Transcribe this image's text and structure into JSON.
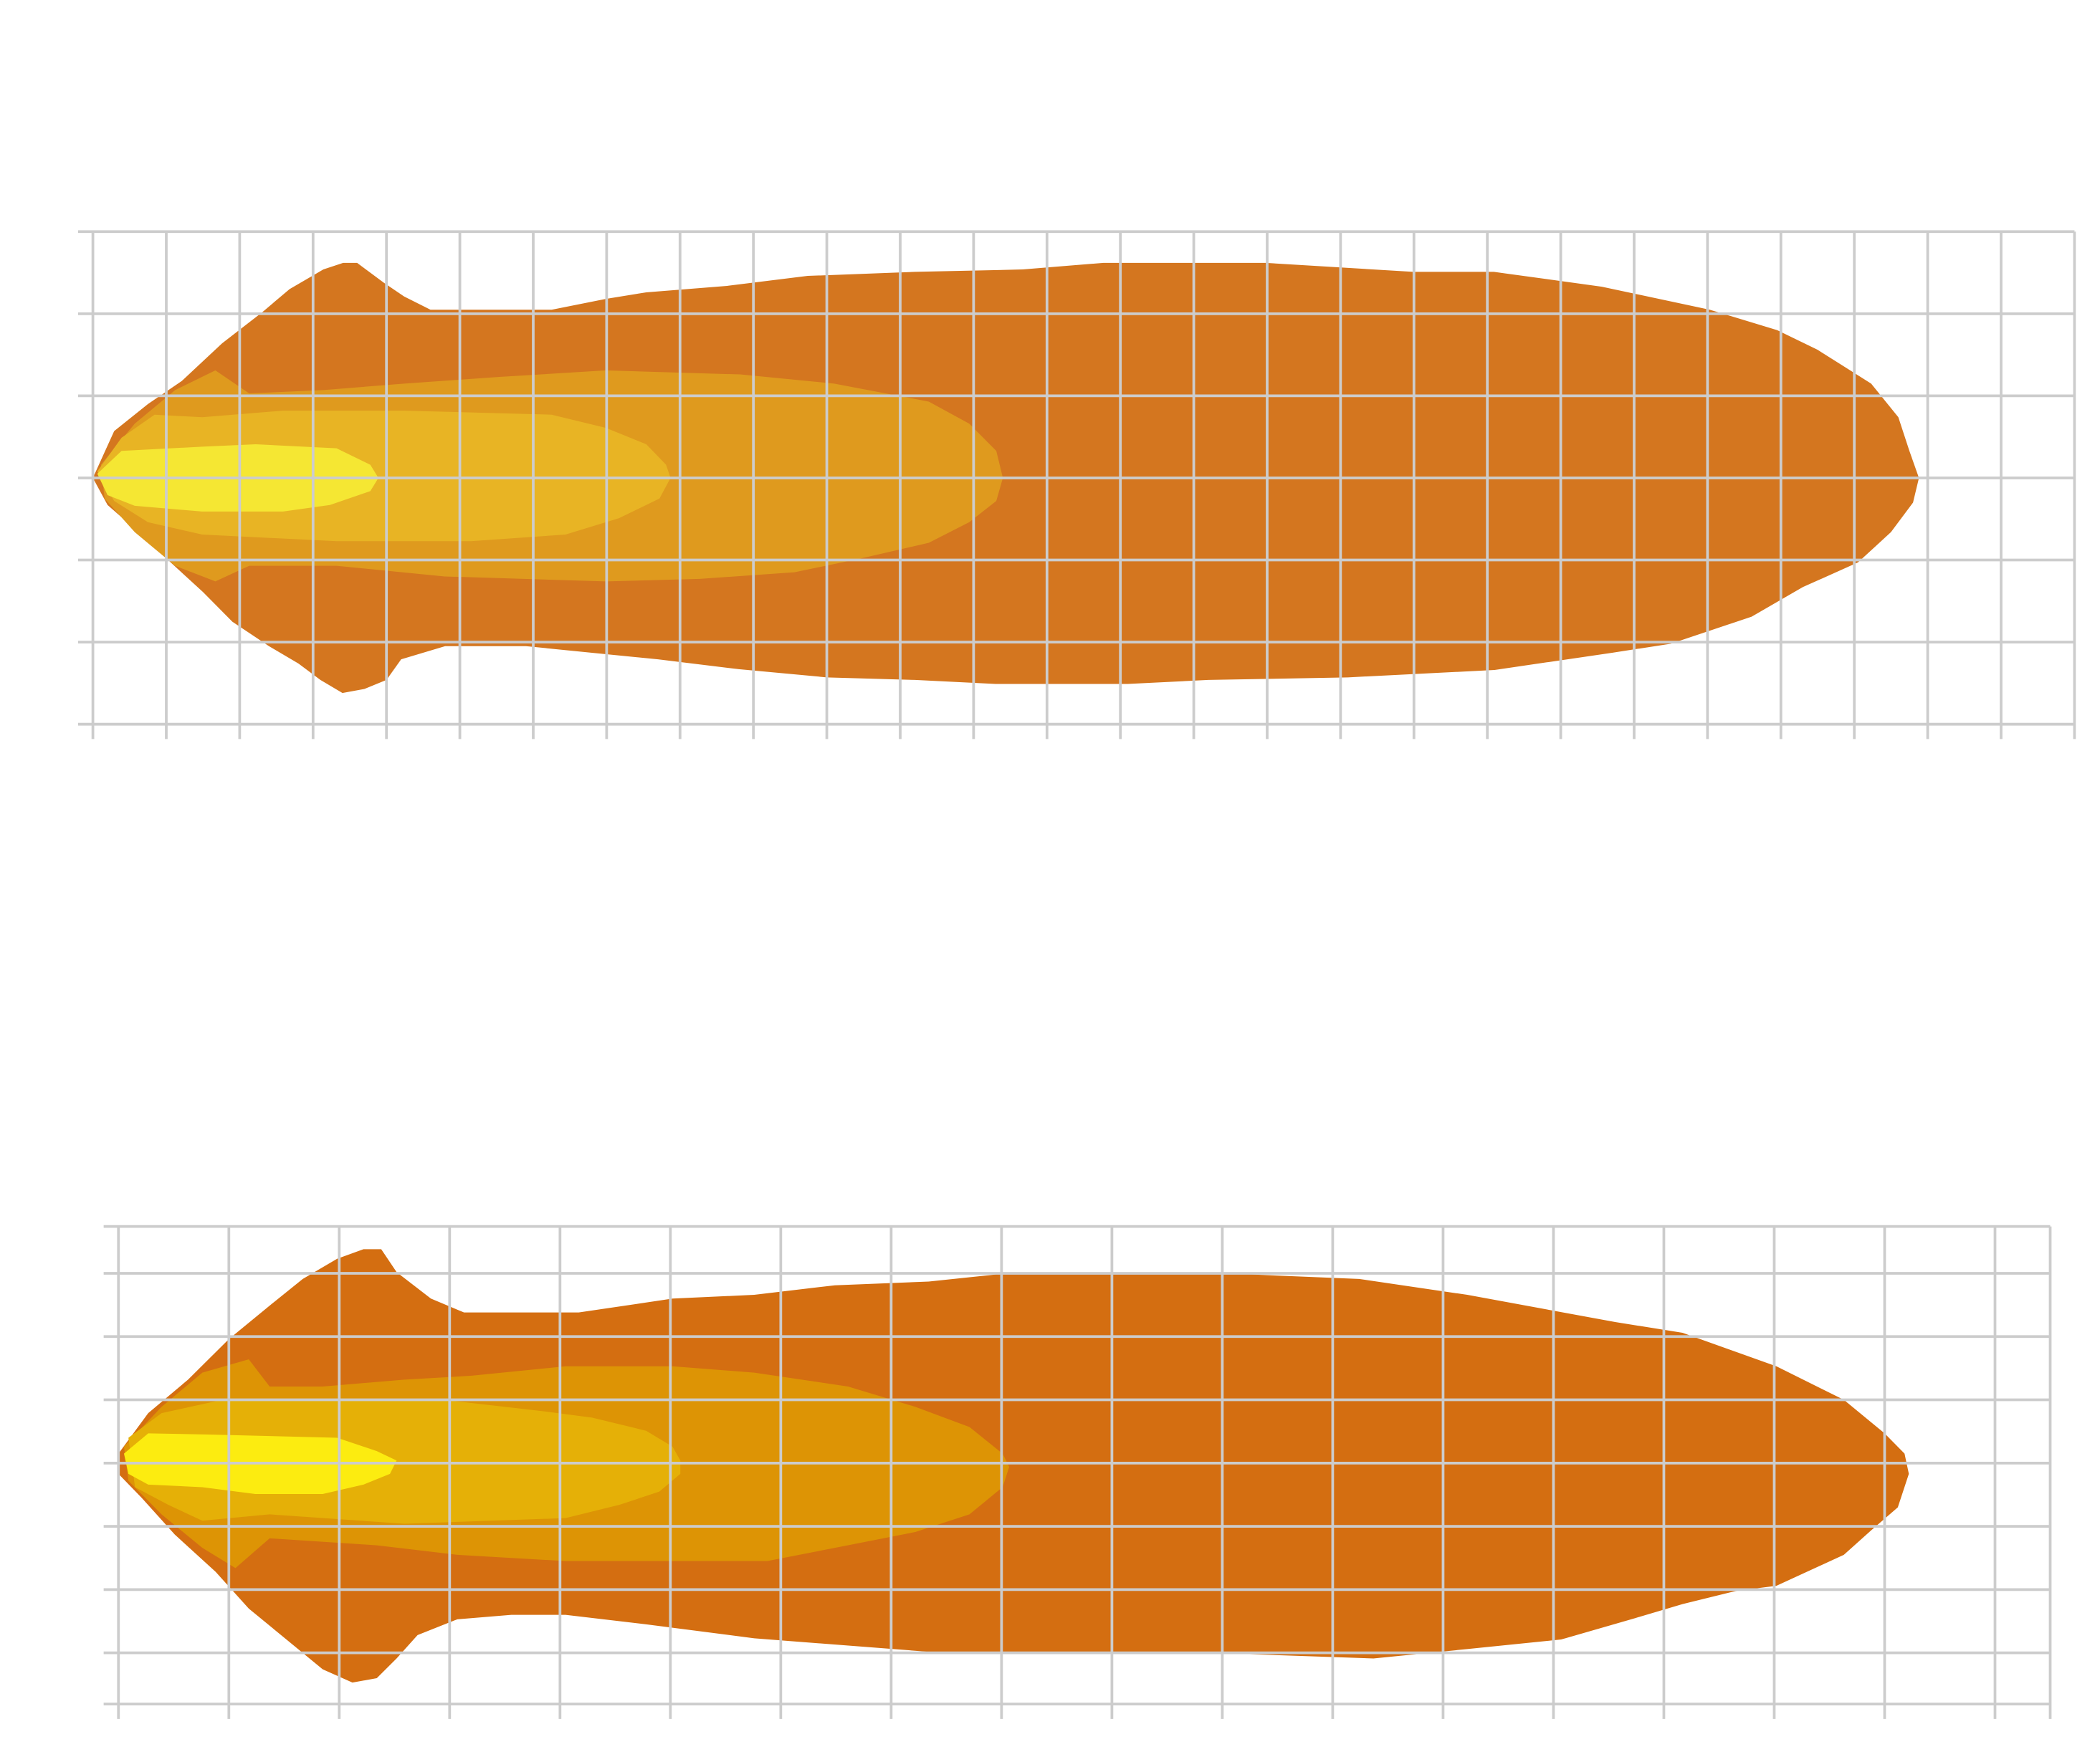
{
  "chart_data": [
    {
      "type": "area",
      "title": "",
      "xlabel": "",
      "ylabel": "",
      "grid": true,
      "grid_color": "#CCCCCC",
      "xlim": [
        0,
        27
      ],
      "ylim": [
        -3,
        3
      ],
      "x_grid": [
        0,
        1,
        2,
        3,
        4,
        5,
        6,
        7,
        8,
        9,
        10,
        11,
        12,
        13,
        14,
        15,
        16,
        17,
        18,
        19,
        20,
        21,
        22,
        23,
        24,
        25,
        26,
        27
      ],
      "y_grid": [
        -3,
        -2,
        -1,
        0,
        1,
        2,
        3
      ],
      "contours": [
        {
          "level": 1,
          "color": "#D4761F",
          "top": [
            [
              0,
              0
            ],
            [
              0.29,
              0.57
            ],
            [
              0.75,
              0.9
            ],
            [
              1.21,
              1.18
            ],
            [
              1.76,
              1.64
            ],
            [
              2.31,
              2.02
            ],
            [
              2.68,
              2.3
            ],
            [
              3.14,
              2.54
            ],
            [
              3.41,
              2.62
            ],
            [
              3.6,
              2.62
            ],
            [
              3.96,
              2.38
            ],
            [
              4.24,
              2.21
            ],
            [
              4.6,
              2.05
            ],
            [
              6.25,
              2.05
            ],
            [
              6.99,
              2.18
            ],
            [
              7.54,
              2.26
            ],
            [
              8.64,
              2.34
            ],
            [
              9.74,
              2.46
            ],
            [
              11.2,
              2.51
            ],
            [
              12.67,
              2.54
            ],
            [
              13.77,
              2.62
            ],
            [
              15.98,
              2.62
            ],
            [
              17.99,
              2.51
            ],
            [
              19.09,
              2.51
            ],
            [
              20.56,
              2.33
            ],
            [
              22.03,
              2.05
            ],
            [
              22.95,
              1.8
            ],
            [
              23.5,
              1.56
            ],
            [
              24.23,
              1.15
            ],
            [
              24.6,
              0.74
            ],
            [
              24.75,
              0.33
            ],
            [
              24.88,
              0
            ]
          ],
          "bottom": [
            [
              24.8,
              -0.3
            ],
            [
              24.5,
              -0.66
            ],
            [
              24.05,
              -1.03
            ],
            [
              23.3,
              -1.33
            ],
            [
              22.6,
              -1.69
            ],
            [
              21.5,
              -2.02
            ],
            [
              20.7,
              -2.13
            ],
            [
              19.1,
              -2.34
            ],
            [
              17.1,
              -2.43
            ],
            [
              15.2,
              -2.46
            ],
            [
              14.1,
              -2.51
            ],
            [
              12.3,
              -2.51
            ],
            [
              11.2,
              -2.46
            ],
            [
              10,
              -2.43
            ],
            [
              8.8,
              -2.33
            ],
            [
              7.7,
              -2.21
            ],
            [
              6.8,
              -2.13
            ],
            [
              5.9,
              -2.05
            ],
            [
              4.8,
              -2.05
            ],
            [
              4.2,
              -2.21
            ],
            [
              4,
              -2.46
            ],
            [
              3.7,
              -2.57
            ],
            [
              3.4,
              -2.62
            ],
            [
              3.1,
              -2.46
            ],
            [
              2.8,
              -2.26
            ],
            [
              2.4,
              -2.05
            ],
            [
              1.9,
              -1.75
            ],
            [
              1.5,
              -1.39
            ],
            [
              1,
              -0.98
            ],
            [
              0.57,
              -0.62
            ],
            [
              0.2,
              -0.33
            ]
          ]
        },
        {
          "level": 2,
          "color": "#DF9A1E",
          "top": [
            [
              0.11,
              0.16
            ],
            [
              0.57,
              0.66
            ],
            [
              1.12,
              1.07
            ],
            [
              1.67,
              1.31
            ],
            [
              2.13,
              1.03
            ],
            [
              3.14,
              1.07
            ],
            [
              4.24,
              1.15
            ],
            [
              5.52,
              1.23
            ],
            [
              6.99,
              1.31
            ],
            [
              8.82,
              1.26
            ],
            [
              10.1,
              1.15
            ],
            [
              11.39,
              0.93
            ],
            [
              11.94,
              0.66
            ],
            [
              12.31,
              0.33
            ],
            [
              12.4,
              0
            ]
          ],
          "bottom": [
            [
              12.31,
              -0.28
            ],
            [
              11.94,
              -0.54
            ],
            [
              11.39,
              -0.79
            ],
            [
              10.47,
              -0.98
            ],
            [
              9.56,
              -1.15
            ],
            [
              8.27,
              -1.23
            ],
            [
              6.99,
              -1.26
            ],
            [
              4.79,
              -1.2
            ],
            [
              3.32,
              -1.07
            ],
            [
              2.13,
              -1.07
            ],
            [
              1.67,
              -1.26
            ],
            [
              1.12,
              -1.07
            ],
            [
              0.57,
              -0.66
            ],
            [
              0.16,
              -0.25
            ]
          ]
        },
        {
          "level": 3,
          "color": "#E8B424",
          "top": [
            [
              0.06,
              0.08
            ],
            [
              0.39,
              0.49
            ],
            [
              0.84,
              0.77
            ],
            [
              1.49,
              0.74
            ],
            [
              2.59,
              0.82
            ],
            [
              4.24,
              0.82
            ],
            [
              6.25,
              0.77
            ],
            [
              6.99,
              0.61
            ],
            [
              7.54,
              0.41
            ],
            [
              7.81,
              0.16
            ],
            [
              7.87,
              0
            ]
          ],
          "bottom": [
            [
              7.72,
              -0.25
            ],
            [
              7.17,
              -0.49
            ],
            [
              6.44,
              -0.69
            ],
            [
              5.15,
              -0.77
            ],
            [
              3.32,
              -0.77
            ],
            [
              1.49,
              -0.69
            ],
            [
              0.75,
              -0.54
            ],
            [
              0.29,
              -0.28
            ]
          ]
        },
        {
          "level": 4,
          "color": "#F5E733",
          "top": [
            [
              0.06,
              0.05
            ],
            [
              0.39,
              0.33
            ],
            [
              1.49,
              0.38
            ],
            [
              2.22,
              0.41
            ],
            [
              3.32,
              0.36
            ],
            [
              3.78,
              0.16
            ],
            [
              3.89,
              0
            ]
          ],
          "bottom": [
            [
              3.78,
              -0.16
            ],
            [
              3.23,
              -0.33
            ],
            [
              2.59,
              -0.41
            ],
            [
              1.49,
              -0.41
            ],
            [
              0.57,
              -0.34
            ],
            [
              0.2,
              -0.21
            ]
          ]
        }
      ]
    },
    {
      "type": "area",
      "title": "",
      "xlabel": "",
      "ylabel": "",
      "grid": true,
      "grid_color": "#CCCCCC",
      "xlim": [
        0,
        17.5
      ],
      "ylim": [
        -3.81,
        3.74
      ],
      "x_grid": [
        0,
        1,
        2,
        3,
        4,
        5,
        6,
        7,
        8,
        9,
        10,
        11,
        12,
        13,
        14,
        15,
        16,
        17,
        17.5
      ],
      "y_grid": [
        -3.81,
        -3,
        -2,
        -1,
        0,
        1,
        2,
        3,
        3.74
      ],
      "contours": [
        {
          "level": 1,
          "color": "#D46E11",
          "top": [
            [
              0,
              0.15
            ],
            [
              0.27,
              0.79
            ],
            [
              0.63,
              1.32
            ],
            [
              1,
              1.96
            ],
            [
              1.37,
              2.49
            ],
            [
              1.67,
              2.91
            ],
            [
              1.98,
              3.23
            ],
            [
              2.22,
              3.38
            ],
            [
              2.38,
              3.38
            ],
            [
              2.52,
              3.02
            ],
            [
              2.83,
              2.6
            ],
            [
              3.13,
              2.38
            ],
            [
              4.17,
              2.38
            ],
            [
              5.02,
              2.6
            ],
            [
              5.76,
              2.66
            ],
            [
              6.49,
              2.81
            ],
            [
              7.34,
              2.87
            ],
            [
              7.95,
              2.98
            ],
            [
              10.27,
              2.98
            ],
            [
              11.24,
              2.91
            ],
            [
              12.22,
              2.66
            ],
            [
              13.56,
              2.23
            ],
            [
              14.17,
              2.06
            ],
            [
              15.02,
              1.53
            ],
            [
              15.63,
              1
            ],
            [
              16,
              0.47
            ],
            [
              16.18,
              0.15
            ],
            [
              16.22,
              -0.17
            ]
          ],
          "bottom": [
            [
              16.12,
              -0.7
            ],
            [
              15.88,
              -1.06
            ],
            [
              15.63,
              -1.45
            ],
            [
              15.02,
              -1.94
            ],
            [
              14.66,
              -2.02
            ],
            [
              14.17,
              -2.23
            ],
            [
              13.74,
              -2.45
            ],
            [
              13.07,
              -2.79
            ],
            [
              12.22,
              -2.94
            ],
            [
              11.37,
              -3.09
            ],
            [
              9.9,
              -3
            ],
            [
              7.46,
              -3
            ],
            [
              5.76,
              -2.77
            ],
            [
              4.78,
              -2.55
            ],
            [
              4.05,
              -2.4
            ],
            [
              3.56,
              -2.4
            ],
            [
              3.07,
              -2.47
            ],
            [
              2.71,
              -2.72
            ],
            [
              2.52,
              -3.09
            ],
            [
              2.34,
              -3.4
            ],
            [
              2.12,
              -3.47
            ],
            [
              1.85,
              -3.26
            ],
            [
              1.55,
              -2.83
            ],
            [
              1.18,
              -2.3
            ],
            [
              0.88,
              -1.72
            ],
            [
              0.51,
              -1.13
            ],
            [
              0.21,
              -0.55
            ],
            [
              0,
              -0.17
            ]
          ]
        },
        {
          "level": 2,
          "color": "#DD9405",
          "top": [
            [
              0.05,
              0.26
            ],
            [
              0.39,
              0.89
            ],
            [
              0.76,
              1.43
            ],
            [
              1.18,
              1.64
            ],
            [
              1.37,
              1.21
            ],
            [
              1.85,
              1.21
            ],
            [
              2.59,
              1.32
            ],
            [
              3.2,
              1.38
            ],
            [
              4.05,
              1.53
            ],
            [
              5.02,
              1.53
            ],
            [
              5.76,
              1.43
            ],
            [
              6.61,
              1.21
            ],
            [
              7.22,
              0.89
            ],
            [
              7.71,
              0.57
            ],
            [
              8.01,
              0.15
            ],
            [
              8.07,
              -0.06
            ]
          ],
          "bottom": [
            [
              8.01,
              -0.38
            ],
            [
              7.71,
              -0.81
            ],
            [
              7.22,
              -1.09
            ],
            [
              6.49,
              -1.34
            ],
            [
              5.88,
              -1.55
            ],
            [
              4.05,
              -1.55
            ],
            [
              3.07,
              -1.45
            ],
            [
              2.34,
              -1.3
            ],
            [
              1.37,
              -1.19
            ],
            [
              1.06,
              -1.66
            ],
            [
              0.76,
              -1.34
            ],
            [
              0.39,
              -0.81
            ],
            [
              0.09,
              -0.28
            ]
          ]
        },
        {
          "level": 3,
          "color": "#E5B007",
          "top": [
            [
              0.09,
              0.4
            ],
            [
              0.39,
              0.79
            ],
            [
              0.94,
              1
            ],
            [
              1.98,
              1
            ],
            [
              2.95,
              1
            ],
            [
              3.8,
              0.83
            ],
            [
              4.29,
              0.72
            ],
            [
              4.78,
              0.51
            ],
            [
              5.02,
              0.26
            ],
            [
              5.09,
              0.04
            ]
          ],
          "bottom": [
            [
              5.09,
              -0.17
            ],
            [
              4.9,
              -0.45
            ],
            [
              4.54,
              -0.66
            ],
            [
              4.05,
              -0.87
            ],
            [
              2.59,
              -0.96
            ],
            [
              1.37,
              -0.81
            ],
            [
              0.76,
              -0.91
            ],
            [
              0.45,
              -0.66
            ],
            [
              0.15,
              -0.38
            ]
          ]
        },
        {
          "level": 4,
          "color": "#FCEC10",
          "top": [
            [
              0.05,
              0.15
            ],
            [
              0.27,
              0.47
            ],
            [
              0.82,
              0.45
            ],
            [
              1.98,
              0.4
            ],
            [
              2.34,
              0.19
            ],
            [
              2.52,
              0.04
            ]
          ],
          "bottom": [
            [
              2.46,
              -0.17
            ],
            [
              2.22,
              -0.34
            ],
            [
              1.85,
              -0.49
            ],
            [
              1.24,
              -0.49
            ],
            [
              0.76,
              -0.38
            ],
            [
              0.27,
              -0.34
            ],
            [
              0.09,
              -0.17
            ]
          ]
        }
      ]
    }
  ]
}
